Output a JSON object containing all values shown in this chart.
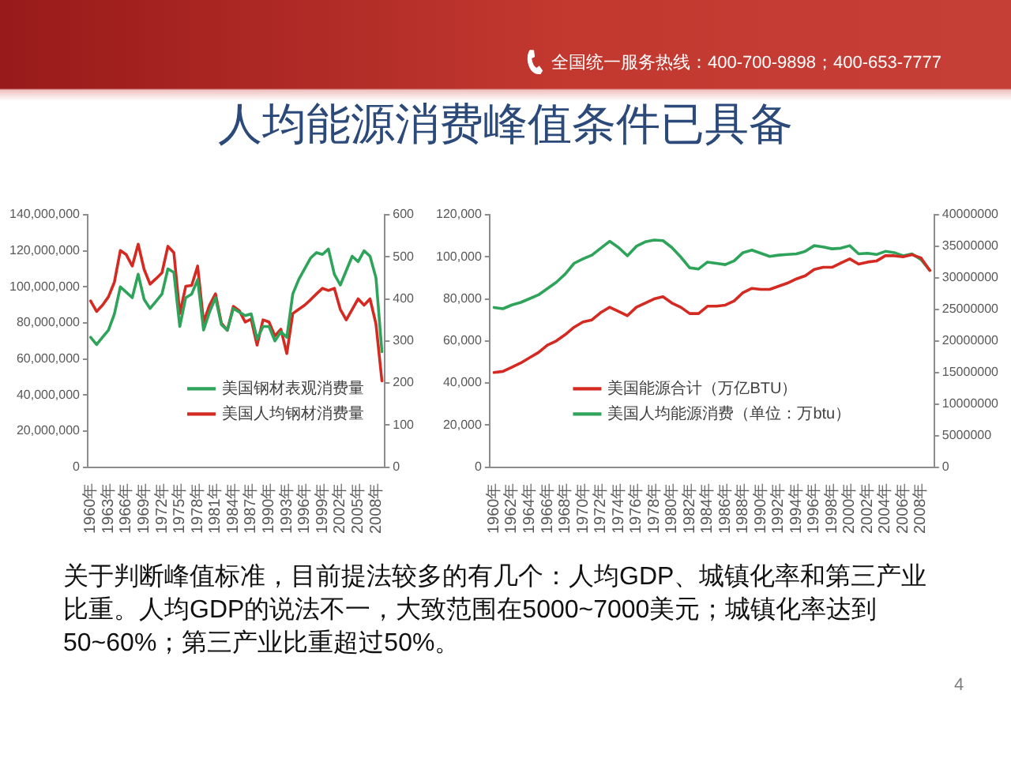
{
  "chart_data": [
    {
      "type": "other",
      "title": "人均能源消费峰值条件已具备",
      "annotations": [
        "全国统一服务热线：400-700-9898；400-653-7777"
      ]
    },
    {
      "type": "line",
      "categories": [
        "1960年",
        null,
        null,
        "1963年",
        null,
        null,
        "1966年",
        null,
        null,
        "1969年",
        null,
        null,
        "1972年",
        null,
        null,
        "1975年",
        null,
        null,
        "1978年",
        null,
        null,
        "1981年",
        null,
        null,
        "1984年",
        null,
        null,
        "1987年",
        null,
        null,
        "1990年",
        null,
        null,
        "1993年",
        null,
        null,
        "1996年",
        null,
        null,
        "1999年",
        null,
        null,
        "2002年",
        null,
        null,
        "2005年",
        null,
        null,
        "2008年",
        null
      ],
      "series": [
        {
          "name": "美国钢材表观消费量",
          "color": "#2ea35a",
          "values": [
            72000000,
            68000000,
            72000000,
            76000000,
            85000000,
            100000000,
            97000000,
            94000000,
            107000000,
            93000000,
            88000000,
            92000000,
            96000000,
            110000000,
            108000000,
            78000000,
            94000000,
            96000000,
            104000000,
            76000000,
            86000000,
            94000000,
            79000000,
            76000000,
            88000000,
            86000000,
            84000000,
            85000000,
            71000000,
            78000000,
            78000000,
            70000000,
            75000000,
            72000000,
            96000000,
            104000000,
            110000000,
            116000000,
            119000000,
            118000000,
            121000000,
            107000000,
            101000000,
            109000000,
            117000000,
            114000000,
            120000000,
            117000000,
            105000000,
            64000000
          ]
        },
        {
          "name": "美国人均钢材消费量",
          "color": "#d42a22",
          "axis": "y2",
          "values": [
            395,
            370,
            385,
            405,
            440,
            515,
            505,
            478,
            530,
            470,
            435,
            448,
            462,
            525,
            510,
            365,
            430,
            432,
            478,
            345,
            385,
            412,
            342,
            325,
            382,
            372,
            345,
            352,
            290,
            350,
            345,
            312,
            328,
            270,
            365,
            375,
            385,
            398,
            412,
            425,
            420,
            425,
            375,
            350,
            375,
            400,
            385,
            400,
            340,
            205
          ]
        }
      ],
      "ylim": [
        0,
        140000000
      ],
      "yticks": [
        0,
        {
          "value": 20000000,
          "label": "20,000,000"
        },
        {
          "value": 40000000,
          "label": "40,000,000"
        },
        {
          "value": 60000000,
          "label": "60,000,000"
        },
        {
          "value": 80000000,
          "label": "80,000,000"
        },
        {
          "value": 100000000,
          "label": "100,000,000"
        },
        {
          "value": 120000000,
          "label": "120,000,000"
        },
        {
          "value": 140000000,
          "label": "140,000,000"
        }
      ],
      "y2lim": [
        0,
        600
      ],
      "y2ticks": [
        0,
        100,
        200,
        300,
        400,
        500,
        600
      ],
      "legend": "bottom right"
    },
    {
      "type": "line",
      "categories": [
        "1960年",
        null,
        "1962年",
        null,
        "1964年",
        null,
        "1966年",
        null,
        "1968年",
        null,
        "1970年",
        null,
        "1972年",
        null,
        "1974年",
        null,
        "1976年",
        null,
        "1978年",
        null,
        "1980年",
        null,
        "1982年",
        null,
        "1984年",
        null,
        "1986年",
        null,
        "1988年",
        null,
        "1990年",
        null,
        "1992年",
        null,
        "1994年",
        null,
        "1996年",
        null,
        "1998年",
        null,
        "2000年",
        null,
        "2002年",
        null,
        "2004年",
        null,
        "2006年",
        null,
        "2008年",
        null
      ],
      "series": [
        {
          "name": "美国能源合计（万亿BTU）",
          "color": "#d42a22",
          "values": [
            45000,
            45500,
            47500,
            49500,
            52000,
            54500,
            58000,
            60000,
            63000,
            66500,
            69000,
            70000,
            73500,
            76000,
            74000,
            72000,
            76000,
            78000,
            80000,
            81000,
            78000,
            76000,
            73000,
            73000,
            76500,
            76500,
            77000,
            79000,
            83000,
            85000,
            84500,
            84500,
            86000,
            87500,
            89500,
            91000,
            94000,
            95000,
            95000,
            97000,
            99000,
            96500,
            97500,
            98000,
            100500,
            100500,
            100000,
            101000,
            99500,
            93500
          ]
        },
        {
          "name": "美国人均能源消费（单位：万btu）",
          "color": "#2ea35a",
          "axis": "y2",
          "values": [
            25300000,
            25100000,
            25700000,
            26100000,
            26700000,
            27300000,
            28300000,
            29300000,
            30600000,
            32300000,
            33000000,
            33600000,
            34700000,
            35800000,
            34800000,
            33500000,
            35000000,
            35700000,
            36000000,
            35900000,
            34800000,
            33300000,
            31600000,
            31400000,
            32500000,
            32300000,
            32100000,
            32700000,
            34000000,
            34400000,
            33900000,
            33400000,
            33600000,
            33700000,
            33800000,
            34200000,
            35100000,
            34900000,
            34600000,
            34700000,
            35100000,
            33800000,
            33900000,
            33700000,
            34200000,
            34000000,
            33500000,
            33800000,
            32900000,
            31200000
          ]
        }
      ],
      "ylim": [
        0,
        120000
      ],
      "yticks": [
        0,
        {
          "value": 20000,
          "label": "20,000"
        },
        {
          "value": 40000,
          "label": "40,000"
        },
        {
          "value": 60000,
          "label": "60,000"
        },
        {
          "value": 80000,
          "label": "80,000"
        },
        {
          "value": 100000,
          "label": "100,000"
        },
        {
          "value": 120000,
          "label": "120,000"
        }
      ],
      "y2lim": [
        0,
        40000000
      ],
      "y2ticks": [
        0,
        5000000,
        10000000,
        15000000,
        20000000,
        25000000,
        30000000,
        35000000,
        40000000
      ],
      "legend": "bottom"
    },
    {
      "type": "other",
      "annotations": [
        "关于判断峰值标准，目前提法较多的有几个：人均GDP、城镇化率和第三产业比重。人均GDP的说法不一，大致范围在5000~7000美元；城镇化率达到50~60%；第三产业比重超过50%。",
        "4"
      ]
    }
  ]
}
